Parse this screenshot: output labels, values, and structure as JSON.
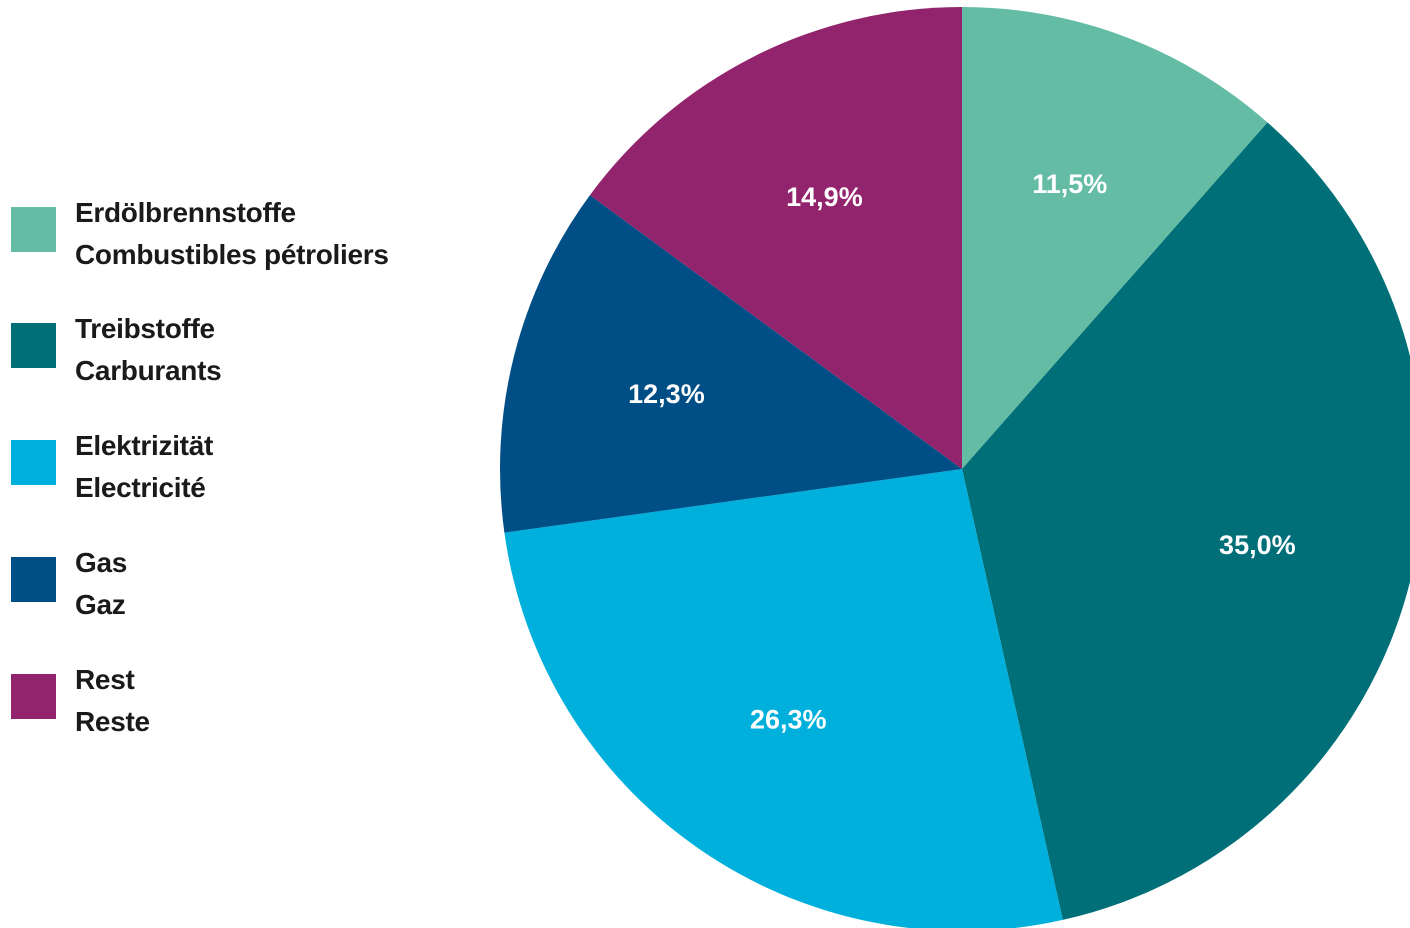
{
  "chart_data": {
    "type": "pie",
    "title": "",
    "start_angle_deg": 0,
    "direction": "clockwise",
    "slices": [
      {
        "name_de": "Erdölbrennstoffe",
        "name_fr": "Combustibles pétroliers",
        "value": 11.5,
        "label": "11,5%",
        "color": "#63bca3"
      },
      {
        "name_de": "Treibstoffe",
        "name_fr": "Carburants",
        "value": 35.0,
        "label": "35,0%",
        "color": "#006f78"
      },
      {
        "name_de": "Elektrizität",
        "name_fr": "Electricité",
        "value": 26.3,
        "label": "26,3%",
        "color": "#00b0dc"
      },
      {
        "name_de": "Gas",
        "name_fr": "Gaz",
        "value": 12.3,
        "label": "12,3%",
        "color": "#004e86"
      },
      {
        "name_de": "Rest",
        "name_fr": "Reste",
        "value": 14.9,
        "label": "14,9%",
        "color": "#92246d"
      }
    ],
    "legend_position": "left"
  }
}
